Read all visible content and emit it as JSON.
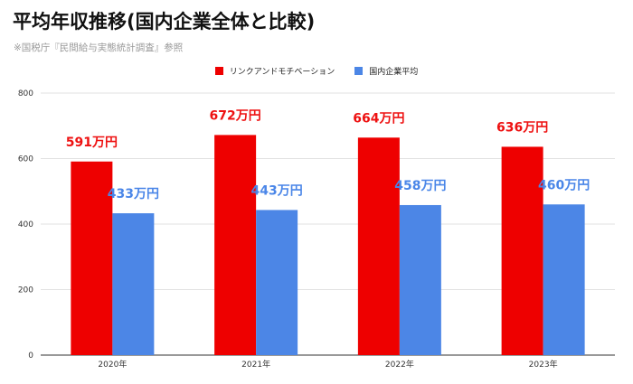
{
  "header": {
    "title": "平均年収推移(国内企業全体と比較)",
    "subtitle": "※国税庁『民間給与実態統計調査』参照"
  },
  "colors": {
    "series1": "#ee0000",
    "series2": "#4c86e6",
    "label1": "#ee1111",
    "label2": "#4a86e8",
    "grid": "#e2e2e2"
  },
  "chart_data": {
    "type": "bar",
    "categories": [
      "2020年",
      "2021年",
      "2022年",
      "2023年"
    ],
    "series": [
      {
        "name": "リンクアンドモチベーション",
        "values": [
          591,
          672,
          664,
          636
        ],
        "labels": [
          "591万円",
          "672万円",
          "664万円",
          "636万円"
        ]
      },
      {
        "name": "国内企業平均",
        "values": [
          433,
          443,
          458,
          460
        ],
        "labels": [
          "433万円",
          "443万円",
          "458万円",
          "460万円"
        ]
      }
    ],
    "yticks": [
      0,
      200,
      400,
      600,
      800
    ],
    "ylim": [
      0,
      800
    ],
    "grid": true,
    "legend_position": "top-center"
  }
}
